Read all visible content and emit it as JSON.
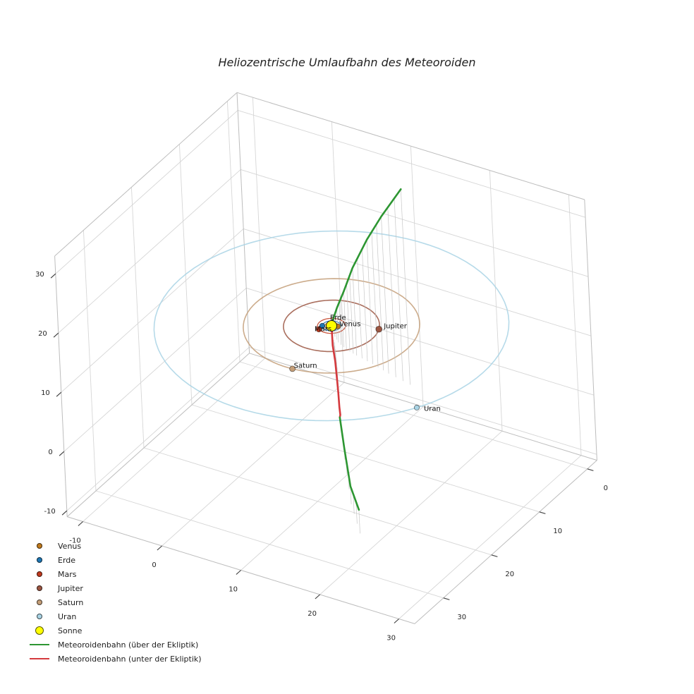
{
  "title": "Heliozentrische Umlaufbahn des Meteoroiden",
  "legend": {
    "items": [
      {
        "label": "Venus",
        "type": "marker",
        "color": "#c07a1d",
        "size": 8
      },
      {
        "label": "Erde",
        "type": "marker",
        "color": "#1f77b4",
        "size": 8
      },
      {
        "label": "Mars",
        "type": "marker",
        "color": "#c03a1e",
        "size": 8
      },
      {
        "label": "Jupiter",
        "type": "marker",
        "color": "#9c5642",
        "size": 8
      },
      {
        "label": "Saturn",
        "type": "marker",
        "color": "#c49e78",
        "size": 8
      },
      {
        "label": "Uran",
        "type": "marker",
        "color": "#a9d4e5",
        "size": 8
      },
      {
        "label": "Sonne",
        "type": "marker",
        "color": "#ffff00",
        "size": 12
      },
      {
        "label": "Meteoroidenbahn (über der Ekliptik)",
        "type": "line",
        "color": "#2d9632"
      },
      {
        "label": "Meteoroidenbahn (unter der Ekliptik)",
        "type": "line",
        "color": "#d5393d"
      }
    ]
  },
  "chart_data": {
    "type": "line",
    "projection": "3d",
    "title": "Heliozentrische Umlaufbahn des Meteoroiden",
    "xlabel": "",
    "ylabel": "",
    "zlabel": "",
    "axes": {
      "x": {
        "ticks": [
          -10,
          0,
          10,
          20,
          30
        ],
        "range": [
          -12,
          32
        ]
      },
      "y": {
        "ticks": [
          0,
          10,
          20,
          30
        ],
        "range": [
          -2,
          36
        ]
      },
      "z": {
        "ticks": [
          -10,
          0,
          10,
          20,
          30
        ],
        "range": [
          -11,
          33
        ]
      },
      "grid": true
    },
    "sun": {
      "name": "Sonne",
      "color": "#ffff00",
      "edge_color": "#1a1a1a",
      "position": [
        0,
        0,
        0
      ],
      "marker_r": 7.5
    },
    "planets": [
      {
        "name": "Venus",
        "color": "#c07a1d",
        "orbit_radius": 0.72,
        "angle_deg": -20,
        "marker_r": 3.6
      },
      {
        "name": "Erde",
        "color": "#1f77b4",
        "orbit_radius": 1.0,
        "angle_deg": 150,
        "marker_r": 3.8
      },
      {
        "name": "Mars",
        "color": "#c03a1e",
        "orbit_radius": 1.52,
        "angle_deg": 123,
        "marker_r": 3.8
      },
      {
        "name": "Jupiter",
        "color": "#9c5642",
        "orbit_radius": 5.2,
        "angle_deg": -22,
        "marker_r": 4.4
      },
      {
        "name": "Saturn",
        "color": "#c49e78",
        "orbit_radius": 9.55,
        "angle_deg": 85,
        "marker_r": 4.0
      },
      {
        "name": "Uran",
        "color": "#a9d4e5",
        "orbit_radius": 19.2,
        "angle_deg": 30,
        "marker_r": 3.6
      }
    ],
    "meteoroid": {
      "above_label": "Meteoroidenbahn (über der Ekliptik)",
      "below_label": "Meteoroidenbahn (unter der Ekliptik)",
      "above_color": "#2d9632",
      "below_color": "#d5393d",
      "points": [
        [
          13.6,
          6.0,
          33.0
        ],
        [
          10.4,
          5.2,
          26.5
        ],
        [
          7.9,
          4.4,
          21.0
        ],
        [
          5.5,
          3.8,
          14.8
        ],
        [
          3.9,
          3.3,
          9.8
        ],
        [
          2.4,
          2.5,
          5.8
        ],
        [
          1.0,
          1.3,
          2.2
        ],
        [
          0.4,
          0.6,
          0.0
        ],
        [
          1.0,
          1.5,
          -1.8
        ],
        [
          2.0,
          2.7,
          -3.2
        ],
        [
          3.2,
          4.4,
          -4.2
        ],
        [
          4.9,
          6.9,
          -4.3
        ],
        [
          7.2,
          10.4,
          -3.2
        ],
        [
          9.2,
          13.4,
          -1.5
        ],
        [
          10.4,
          15.4,
          0.0
        ],
        [
          15.3,
          22.4,
          1.7
        ],
        [
          20.6,
          29.8,
          3.0
        ],
        [
          24.5,
          34.4,
          4.0
        ]
      ]
    },
    "style": {
      "grid_color": "#d6d6d6",
      "edge_color": "#bdbdbd",
      "tick_color": "#3c3c3c",
      "tick_label_color": "#262626",
      "stem_color": "#c2c2c2",
      "planet_label_color": "#111111",
      "background": "#ffffff"
    }
  }
}
